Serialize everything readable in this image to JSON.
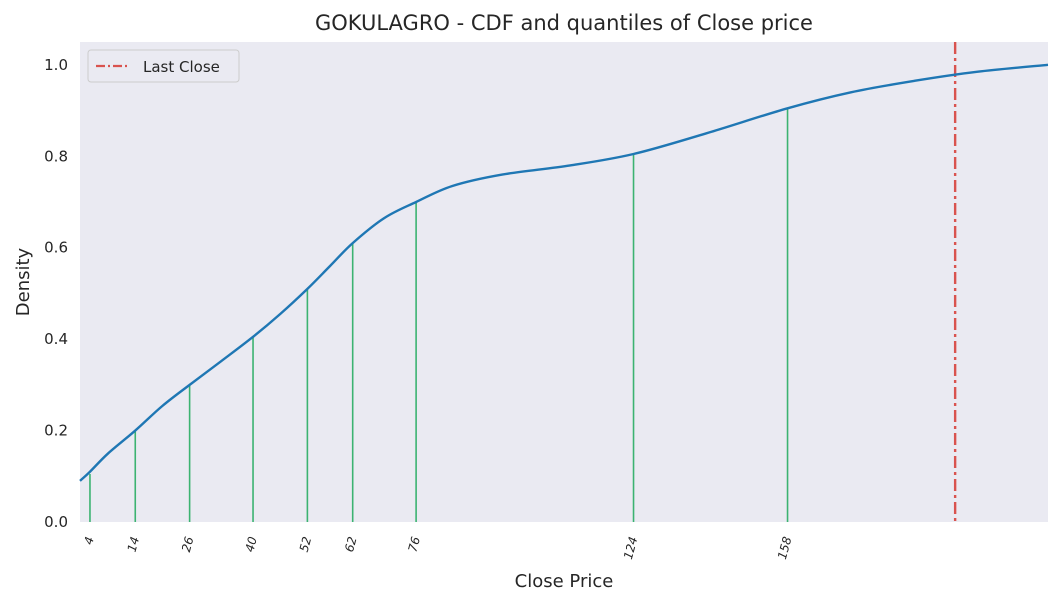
{
  "chart_data": {
    "type": "line",
    "title": "GOKULAGRO - CDF and quantiles of Close price",
    "xlabel": "Close Price",
    "ylabel": "Density",
    "xlim": [
      1.8,
      215.5
    ],
    "ylim": [
      0,
      1.05
    ],
    "y_ticks": [
      "0.0",
      "0.2",
      "0.4",
      "0.6",
      "0.8",
      "1.0"
    ],
    "grid": false,
    "legend_position": "top-left",
    "series": [
      {
        "name": "",
        "color": "#1f77b4",
        "x": [
          1.8,
          4,
          8,
          14,
          20,
          26,
          33,
          40,
          46,
          52,
          57,
          62,
          69,
          76,
          84,
          95,
          110,
          124,
          140,
          158,
          172,
          186,
          200,
          215.5
        ],
        "y": [
          0.09,
          0.11,
          0.15,
          0.2,
          0.254,
          0.3,
          0.352,
          0.405,
          0.455,
          0.51,
          0.56,
          0.61,
          0.665,
          0.7,
          0.735,
          0.76,
          0.78,
          0.805,
          0.85,
          0.905,
          0.94,
          0.965,
          0.985,
          1.0
        ]
      }
    ],
    "quantiles": [
      {
        "label": "4",
        "x": 4,
        "y": 0.105
      },
      {
        "label": "14",
        "x": 14,
        "y": 0.2
      },
      {
        "label": "26",
        "x": 26,
        "y": 0.3
      },
      {
        "label": "40",
        "x": 40,
        "y": 0.405
      },
      {
        "label": "52",
        "x": 52,
        "y": 0.51
      },
      {
        "label": "62",
        "x": 62,
        "y": 0.61
      },
      {
        "label": "76",
        "x": 76,
        "y": 0.7
      },
      {
        "label": "124",
        "x": 124,
        "y": 0.805
      },
      {
        "label": "158",
        "x": 158,
        "y": 0.905
      }
    ],
    "quantile_color": "#3cb371",
    "last_close": {
      "label": "Last Close",
      "x": 195,
      "color": "#d9534f"
    }
  }
}
